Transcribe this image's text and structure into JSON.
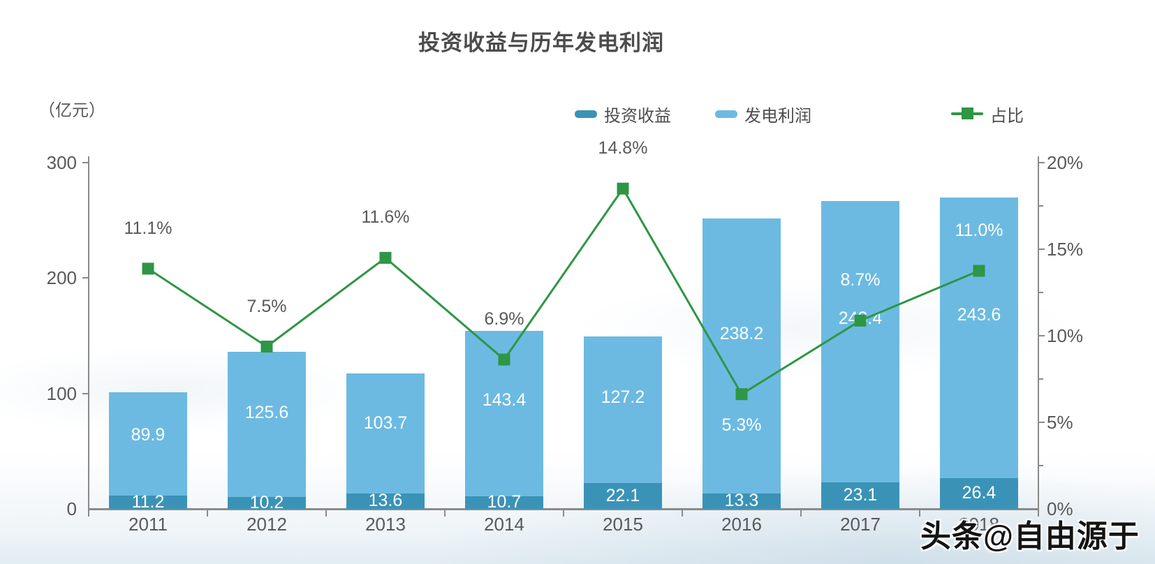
{
  "watermark": "头条@自由源于",
  "chart_data": {
    "type": "bar",
    "subtype": "stacked-bar-with-line",
    "title": "投资收益与历年发电利润",
    "categories": [
      "2011",
      "2012",
      "2013",
      "2014",
      "2015",
      "2016",
      "2017",
      "2018"
    ],
    "series": [
      {
        "name": "投资收益",
        "type": "bar",
        "stack": "total",
        "color": "#3a93b7",
        "values": [
          11.2,
          10.2,
          13.6,
          10.7,
          22.1,
          13.3,
          23.1,
          26.4
        ],
        "labels": [
          "11.2",
          "10.2",
          "13.6",
          "10.7",
          "22.1",
          "13.3",
          "23.1",
          "26.4"
        ]
      },
      {
        "name": "发电利润",
        "type": "bar",
        "stack": "total",
        "color": "#6cbae2",
        "values": [
          89.9,
          125.6,
          103.7,
          143.4,
          127.2,
          238.2,
          243.4,
          243.6
        ],
        "labels": [
          "89.9",
          "125.6",
          "103.7",
          "143.4",
          "127.2",
          "238.2",
          "243.4",
          "243.6"
        ]
      },
      {
        "name": "占比",
        "type": "line",
        "color": "#2e9644",
        "values": [
          11.1,
          7.5,
          11.6,
          6.9,
          14.8,
          5.3,
          8.7,
          11.0
        ],
        "labels": [
          "11.1%",
          "7.5%",
          "11.6%",
          "6.9%",
          "14.8%",
          "5.3%",
          "8.7%",
          "11.0%"
        ],
        "label_below": [
          false,
          false,
          false,
          false,
          false,
          true,
          false,
          false
        ],
        "label_on_bar": [
          false,
          false,
          false,
          false,
          false,
          true,
          true,
          true
        ]
      }
    ],
    "left_axis": {
      "unit": "（亿元）",
      "min": 0,
      "max": 300,
      "ticks": [
        {
          "value": 0,
          "label": "0"
        },
        {
          "value": 100,
          "label": "100"
        },
        {
          "value": 200,
          "label": "200"
        },
        {
          "value": 300,
          "label": "300"
        }
      ]
    },
    "right_axis": {
      "min": 0,
      "max": 20,
      "ticks": [
        {
          "value": 0,
          "label": "0%"
        },
        {
          "value": 5,
          "label": "5%"
        },
        {
          "value": 10,
          "label": "10%"
        },
        {
          "value": 15,
          "label": "15%"
        },
        {
          "value": 20,
          "label": "20%"
        }
      ],
      "minor_ticks": [
        2.5,
        7.5,
        12.5,
        17.5
      ]
    },
    "layout_hints": {
      "legend_position": "top-right",
      "grid": false,
      "line_plot_scale_max_pct": 16,
      "pct_label_color_on_white": "#595959",
      "pct_label_color_on_bar": "#ffffff"
    }
  }
}
